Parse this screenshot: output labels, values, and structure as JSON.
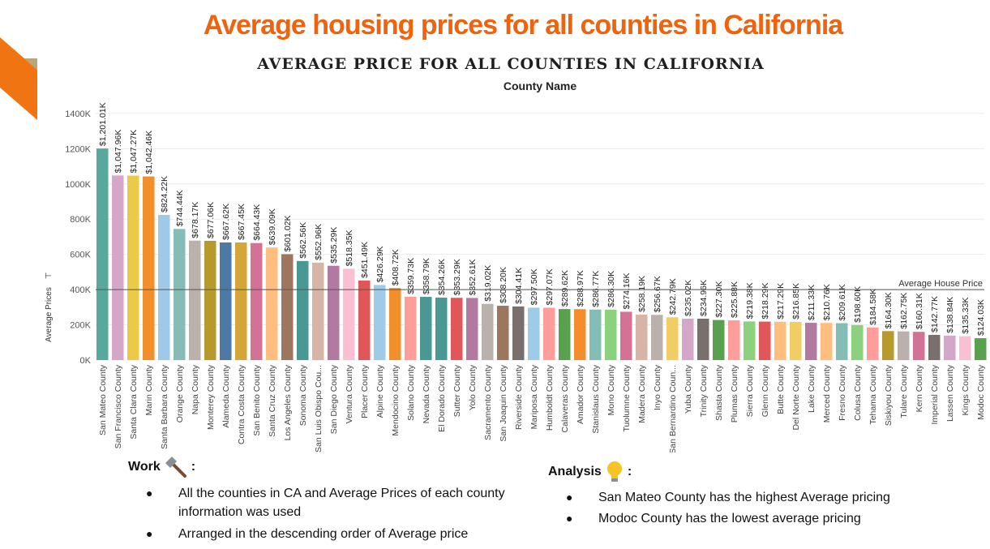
{
  "slide": {
    "title": "Average housing prices for all counties in California",
    "accent_color": "#f07412"
  },
  "chart_data": {
    "type": "bar",
    "title": "AVERAGE PRICE FOR ALL COUNTIES IN CALIFORNIA",
    "subtitle": "County Name",
    "ylabel": "Average Prices",
    "ylim": [
      0,
      1500
    ],
    "yticks": [
      "0K",
      "200K",
      "400K",
      "600K",
      "800K",
      "1000K",
      "1200K",
      "1400K"
    ],
    "reference_line": {
      "label": "Average House Price",
      "value": 400
    },
    "categories": [
      "San Mateo County",
      "San Francisco County",
      "Santa Clara County",
      "Marin County",
      "Santa Barbara County",
      "Orange County",
      "Napa County",
      "Monterey County",
      "Alameda County",
      "Contra Costa County",
      "San Benito County",
      "Santa Cruz County",
      "Los Angeles County",
      "Sonoma County",
      "San Luis Obispo Cou...",
      "San Diego County",
      "Ventura County",
      "Placer County",
      "Alpine County",
      "Mendocino County",
      "Solano County",
      "Nevada County",
      "El Dorado County",
      "Sutter County",
      "Yolo County",
      "Sacramento County",
      "San Joaquin County",
      "Riverside County",
      "Mariposa County",
      "Humboldt County",
      "Calaveras County",
      "Amador County",
      "Stanislaus County",
      "Mono County",
      "Tuolumne County",
      "Madera County",
      "Inyo County",
      "San Bernardino Coun...",
      "Yuba County",
      "Trinity County",
      "Shasta County",
      "Plumas County",
      "Sierra County",
      "Glenn County",
      "Butte County",
      "Del Norte County",
      "Lake County",
      "Merced County",
      "Fresno County",
      "Colusa County",
      "Tehama County",
      "Siskiyou County",
      "Tulare County",
      "Kern County",
      "Imperial County",
      "Lassen County",
      "Kings County",
      "Modoc County"
    ],
    "values": [
      1201.01,
      1047.96,
      1047.27,
      1042.46,
      824.22,
      744.44,
      678.17,
      677.06,
      667.62,
      667.45,
      664.43,
      639.09,
      601.02,
      562.56,
      552.96,
      535.29,
      518.35,
      451.49,
      426.29,
      408.72,
      359.73,
      358.79,
      354.26,
      353.29,
      352.61,
      319.02,
      308.2,
      304.41,
      297.5,
      297.07,
      289.62,
      288.97,
      286.77,
      286.3,
      274.16,
      258.19,
      256.67,
      242.79,
      235.02,
      234.96,
      227.3,
      225.88,
      219.38,
      218.29,
      217.29,
      216.85,
      211.33,
      210.76,
      209.61,
      198.6,
      184.58,
      164.3,
      162.75,
      160.31,
      142.77,
      138.84,
      135.33,
      124.03
    ],
    "labels": [
      "$1,201.01K",
      "$1,047.96K",
      "$1,047.27K",
      "$1,042.46K",
      "$824.22K",
      "$744.44K",
      "$678.17K",
      "$677.06K",
      "$667.62K",
      "$667.45K",
      "$664.43K",
      "$639.09K",
      "$601.02K",
      "$562.56K",
      "$552.96K",
      "$535.29K",
      "$518.35K",
      "$451.49K",
      "$426.29K",
      "$408.72K",
      "$359.73K",
      "$358.79K",
      "$354.26K",
      "$353.29K",
      "$352.61K",
      "$319.02K",
      "$308.20K",
      "$304.41K",
      "$297.50K",
      "$297.07K",
      "$289.62K",
      "$288.97K",
      "$286.77K",
      "$286.30K",
      "$274.16K",
      "$258.19K",
      "$256.67K",
      "$242.79K",
      "$235.02K",
      "$234.96K",
      "$227.30K",
      "$225.88K",
      "$219.38K",
      "$218.29K",
      "$217.29K",
      "$216.85K",
      "$211.33K",
      "$210.76K",
      "$209.61K",
      "$198.60K",
      "$184.58K",
      "$164.30K",
      "$162.75K",
      "$160.31K",
      "$142.77K",
      "$138.84K",
      "$135.33K",
      "$124.03K"
    ],
    "colors": [
      "#59a89c",
      "#d4a6c8",
      "#edc948",
      "#f28e2b",
      "#9fc9e8",
      "#86bcb6",
      "#bab0ac",
      "#b69a2e",
      "#4e79a7",
      "#d4a637",
      "#d37295",
      "#ffbe7d",
      "#9d7660",
      "#499894",
      "#d7b5a6",
      "#b07aa1",
      "#fabfd2",
      "#e15759",
      "#a0cbe8",
      "#f28e2b",
      "#ff9d9a",
      "#499894",
      "#499894",
      "#e15759",
      "#b07aa1",
      "#bab0ac",
      "#9d7660",
      "#79706e",
      "#a0cbe8",
      "#ff9d9a",
      "#59a14f",
      "#f28e2b",
      "#86bcb6",
      "#8cd17d",
      "#d37295",
      "#d7b5a6",
      "#bab0ac",
      "#f1ce63",
      "#d4a6c8",
      "#79706e",
      "#59a14f",
      "#ff9d9a",
      "#8cd17d",
      "#e15759",
      "#ffbe7d",
      "#f1ce63",
      "#b07aa1",
      "#ffbe7d",
      "#86bcb6",
      "#8cd17d",
      "#ff9d9a",
      "#b69a2e",
      "#bab0ac",
      "#d37295",
      "#79706e",
      "#d4a6c8",
      "#fabfd2",
      "#59a14f"
    ],
    "grid": true,
    "legend": "none"
  },
  "work": {
    "heading": "Work",
    "colon": ":",
    "icon": "hammer-icon",
    "bullets": [
      "All the counties in CA and Average Prices of each county information was used",
      "Arranged in the descending order of Average price"
    ]
  },
  "analysis": {
    "heading": "Analysis",
    "colon": ":",
    "icon": "lightbulb-icon",
    "bullets": [
      "San Mateo County has the highest Average pricing",
      "Modoc County has the lowest average pricing"
    ]
  }
}
